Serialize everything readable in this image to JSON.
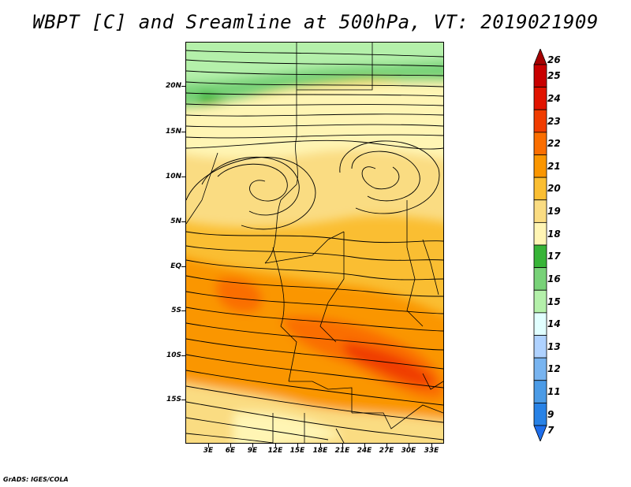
{
  "title": "WBPT [C] and Sreamline at 500hPa, VT: 2019021909",
  "credit": "GrADS: IGES/COLA",
  "lat_labels": [
    "20N",
    "15N",
    "10N",
    "5N",
    "EQ",
    "5S",
    "10S",
    "15S"
  ],
  "lon_labels": [
    "3E",
    "6E",
    "9E",
    "12E",
    "15E",
    "18E",
    "21E",
    "24E",
    "27E",
    "30E",
    "33E"
  ],
  "colorbar": {
    "labels": [
      "26",
      "25",
      "24",
      "23",
      "22",
      "21",
      "20",
      "19",
      "18",
      "17",
      "16",
      "15",
      "14",
      "13",
      "12",
      "11",
      "9",
      "7"
    ],
    "colors": [
      "#a50000",
      "#c80000",
      "#e11400",
      "#f03c00",
      "#fa6e00",
      "#fa9600",
      "#fabe32",
      "#fadc82",
      "#fff5b4",
      "#37b437",
      "#78d278",
      "#b4f0aa",
      "#e1ffff",
      "#afd2ff",
      "#78b4f0",
      "#4b9be6",
      "#2882e6",
      "#1e6eeb"
    ]
  }
}
